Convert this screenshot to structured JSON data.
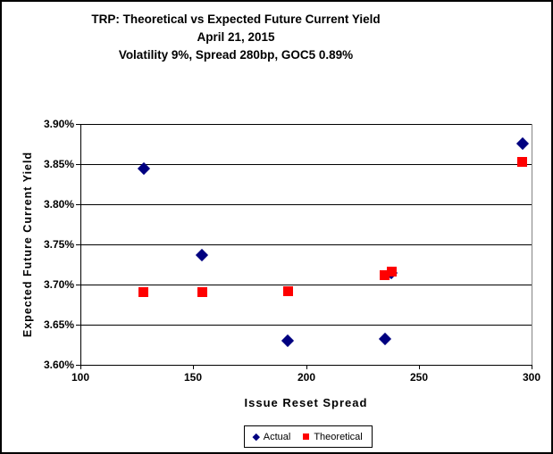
{
  "title": {
    "line1": "TRP: Theoretical vs Expected Future Current Yield",
    "line2": "April 21, 2015",
    "line3": "Volatility 9%, Spread 280bp, GOC5 0.89%"
  },
  "chart_data": {
    "type": "scatter",
    "title": "TRP: Theoretical vs Expected Future Current Yield",
    "subtitle": [
      "April 21, 2015",
      "Volatility 9%, Spread 280bp, GOC5 0.89%"
    ],
    "xlabel": "Issue Reset Spread",
    "ylabel": "Expected Future Current Yield",
    "xlim": [
      100,
      300
    ],
    "ylim": [
      3.6,
      3.9
    ],
    "x_ticks": [
      100,
      150,
      200,
      250,
      300
    ],
    "y_ticks": [
      3.9,
      3.85,
      3.8,
      3.75,
      3.7,
      3.65,
      3.6
    ],
    "y_tick_labels": [
      "3.90%",
      "3.85%",
      "3.80%",
      "3.75%",
      "3.70%",
      "3.65%",
      "3.60%"
    ],
    "x_tick_labels": [
      "100",
      "150",
      "200",
      "250",
      "300"
    ],
    "grid": "horizontal",
    "legend_position": "bottom",
    "series": [
      {
        "name": "Actual",
        "marker": "diamond",
        "color": "#000080",
        "points": [
          [
            128,
            3.845
          ],
          [
            154,
            3.737
          ],
          [
            192,
            3.63
          ],
          [
            235,
            3.632
          ],
          [
            238,
            3.714
          ],
          [
            296,
            3.876
          ]
        ]
      },
      {
        "name": "Theoretical",
        "marker": "square",
        "color": "#fe0000",
        "points": [
          [
            128,
            3.691
          ],
          [
            154,
            3.691
          ],
          [
            192,
            3.692
          ],
          [
            235,
            3.712
          ],
          [
            238,
            3.716
          ],
          [
            296,
            3.853
          ]
        ]
      }
    ]
  },
  "legend": {
    "items": [
      {
        "label": "Actual",
        "marker": "diamond",
        "color": "#000080"
      },
      {
        "label": "Theoretical",
        "marker": "square",
        "color": "#fe0000"
      }
    ]
  }
}
